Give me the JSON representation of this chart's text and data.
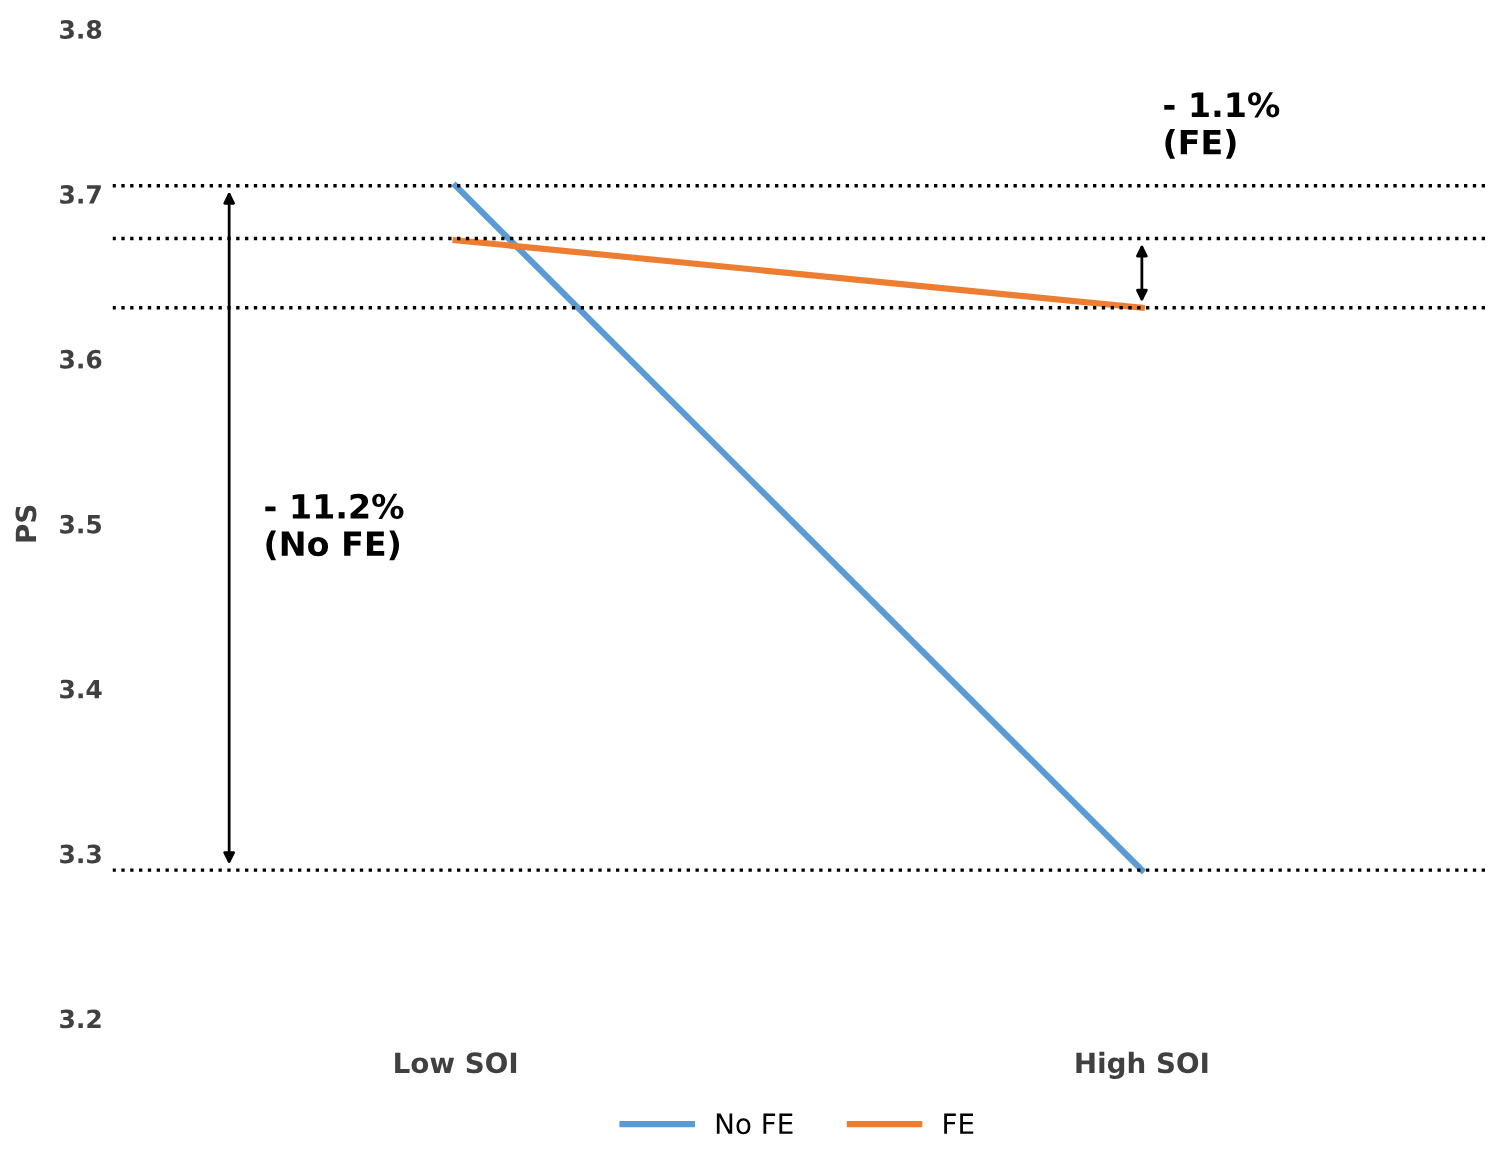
{
  "chart_data": {
    "type": "line",
    "ylabel": "PS",
    "categories": [
      "Low SOI",
      "High SOI"
    ],
    "series": [
      {
        "name": "No FE",
        "color": "#5b9bd5",
        "values": [
          3.705,
          3.29
        ]
      },
      {
        "name": "FE",
        "color": "#ed7d31",
        "values": [
          3.672,
          3.631
        ]
      }
    ],
    "ylim": [
      3.2,
      3.8
    ],
    "yticks": [
      3.2,
      3.3,
      3.4,
      3.5,
      3.6,
      3.7,
      3.8
    ],
    "grid": false,
    "legend": "bottom",
    "marker": "none",
    "line_style": "solid",
    "ref_lines": [
      {
        "axis": "y",
        "value": 3.705,
        "color": "#000000",
        "line_style": "dotted"
      },
      {
        "axis": "y",
        "value": 3.673,
        "color": "#000000",
        "line_style": "dotted"
      },
      {
        "axis": "y",
        "value": 3.631,
        "color": "#000000",
        "line_style": "dotted"
      },
      {
        "axis": "y",
        "value": 3.29,
        "color": "#000000",
        "line_style": "dotted"
      }
    ],
    "annotations": [
      "- 11.2%\n(No FE)",
      "- 1.1%\n(FE)"
    ]
  }
}
